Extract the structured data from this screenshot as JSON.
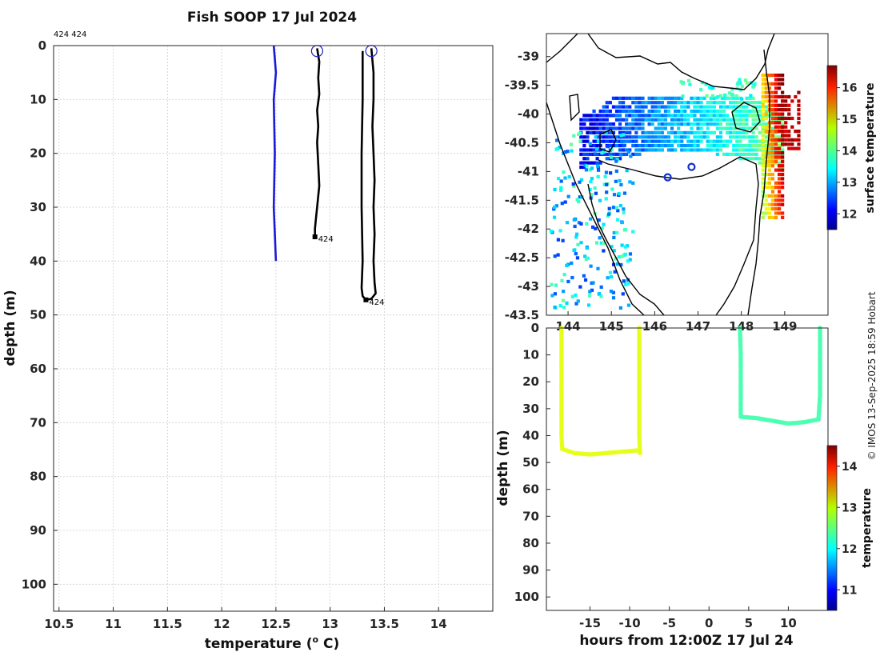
{
  "title": "Fish SOOP 17 Jul 2024",
  "credit": "© IMOS 13-Sep-2025 18:59 Hobart",
  "chart_data": [
    {
      "type": "line",
      "name": "temperature-profile",
      "xlabel": "temperature (o C)",
      "ylabel": "depth (m)",
      "xlim": [
        10.45,
        14.5
      ],
      "ylim": [
        0,
        105
      ],
      "xticks": [
        "10.5",
        "11",
        "11.5",
        "12",
        "12.5",
        "13",
        "13.5",
        "14"
      ],
      "yticks": [
        "0",
        "10",
        "20",
        "30",
        "40",
        "50",
        "60",
        "70",
        "80",
        "90",
        "100"
      ],
      "corner_labels": "424 424",
      "series": [
        {
          "name": "climatology",
          "color": "#1a1ad8",
          "points": [
            [
              12.48,
              0
            ],
            [
              12.5,
              5
            ],
            [
              12.48,
              10
            ],
            [
              12.49,
              20
            ],
            [
              12.48,
              30
            ],
            [
              12.5,
              40
            ]
          ]
        },
        {
          "name": "profile-1",
          "color": "#000000",
          "end_label": "424",
          "points": [
            [
              12.88,
              0.5
            ],
            [
              12.9,
              3
            ],
            [
              12.89,
              6
            ],
            [
              12.9,
              9
            ],
            [
              12.88,
              12
            ],
            [
              12.89,
              15
            ],
            [
              12.88,
              18
            ],
            [
              12.89,
              22
            ],
            [
              12.9,
              26
            ],
            [
              12.88,
              30
            ],
            [
              12.87,
              32
            ],
            [
              12.86,
              34
            ],
            [
              12.86,
              35.5
            ]
          ]
        },
        {
          "name": "profile-2",
          "color": "#000000",
          "end_label": "424",
          "points": [
            [
              13.38,
              0.5
            ],
            [
              13.4,
              5
            ],
            [
              13.4,
              10
            ],
            [
              13.39,
              15
            ],
            [
              13.4,
              20
            ],
            [
              13.41,
              25
            ],
            [
              13.4,
              30
            ],
            [
              13.41,
              35
            ],
            [
              13.4,
              40
            ],
            [
              13.41,
              44
            ],
            [
              13.42,
              46
            ],
            [
              13.38,
              47
            ],
            [
              13.33,
              47.2
            ],
            [
              13.3,
              46.5
            ],
            [
              13.29,
              45
            ],
            [
              13.3,
              40
            ],
            [
              13.29,
              30
            ],
            [
              13.29,
              20
            ],
            [
              13.3,
              10
            ],
            [
              13.3,
              1
            ]
          ]
        }
      ],
      "markers": [
        {
          "temperature": 12.88,
          "depth": 1
        },
        {
          "temperature": 13.38,
          "depth": 1
        }
      ]
    },
    {
      "type": "heatmap",
      "name": "surface-temperature-map",
      "xlim": [
        143.5,
        150.0
      ],
      "ylim": [
        -43.5,
        -38.6
      ],
      "xticks": [
        "144",
        "145",
        "146",
        "147",
        "148",
        "149"
      ],
      "yticks": [
        "-39",
        "-39.5",
        "-40",
        "-40.5",
        "-41",
        "-41.5",
        "-42",
        "-42.5",
        "-43",
        "-43.5"
      ],
      "colorbar_label": "surface temperature",
      "colorbar_range": [
        11.5,
        16.7
      ],
      "colorbar_ticks": [
        "12",
        "13",
        "14",
        "15",
        "16"
      ],
      "stations": [
        {
          "lon": 146.3,
          "lat": -41.1
        },
        {
          "lon": 146.85,
          "lat": -40.92
        }
      ]
    },
    {
      "type": "scatter",
      "name": "depth-time-section",
      "xlabel": "hours from 12:00Z 17 Jul 24",
      "ylabel": "depth (m)",
      "xlim": [
        -20.5,
        15
      ],
      "ylim": [
        0,
        105
      ],
      "xticks": [
        "-15",
        "-10",
        "-5",
        "0",
        "5",
        "10"
      ],
      "yticks": [
        "0",
        "10",
        "20",
        "30",
        "40",
        "50",
        "60",
        "70",
        "80",
        "90",
        "100"
      ],
      "colorbar_label": "temperature",
      "colorbar_range": [
        10.5,
        14.5
      ],
      "colorbar_ticks": [
        "11",
        "12",
        "13",
        "14"
      ],
      "tracks": [
        {
          "name": "track-1",
          "temperature": 12.9,
          "points": [
            [
              -18.6,
              0
            ],
            [
              -18.6,
              10
            ],
            [
              -18.6,
              20
            ],
            [
              -18.6,
              30
            ],
            [
              -18.6,
              40
            ],
            [
              -18.5,
              45
            ],
            [
              -17,
              46.5
            ],
            [
              -15,
              47
            ],
            [
              -13,
              46.5
            ],
            [
              -11,
              46
            ],
            [
              -9,
              45.5
            ],
            [
              -8.7,
              46.5
            ],
            [
              -8.8,
              40
            ],
            [
              -8.8,
              30
            ],
            [
              -8.8,
              28
            ],
            [
              -8.8,
              22
            ],
            [
              -8.8,
              10
            ],
            [
              -8.8,
              0
            ]
          ]
        },
        {
          "name": "track-2",
          "temperature": 12.3,
          "points": [
            [
              3.9,
              0
            ],
            [
              4,
              10
            ],
            [
              4,
              20
            ],
            [
              4,
              30
            ],
            [
              4,
              33
            ],
            [
              6,
              33.5
            ],
            [
              8,
              34.5
            ],
            [
              10,
              35.5
            ],
            [
              12,
              35
            ],
            [
              13.8,
              34
            ],
            [
              14,
              25
            ],
            [
              14,
              10
            ],
            [
              14,
              0
            ]
          ]
        }
      ]
    }
  ]
}
